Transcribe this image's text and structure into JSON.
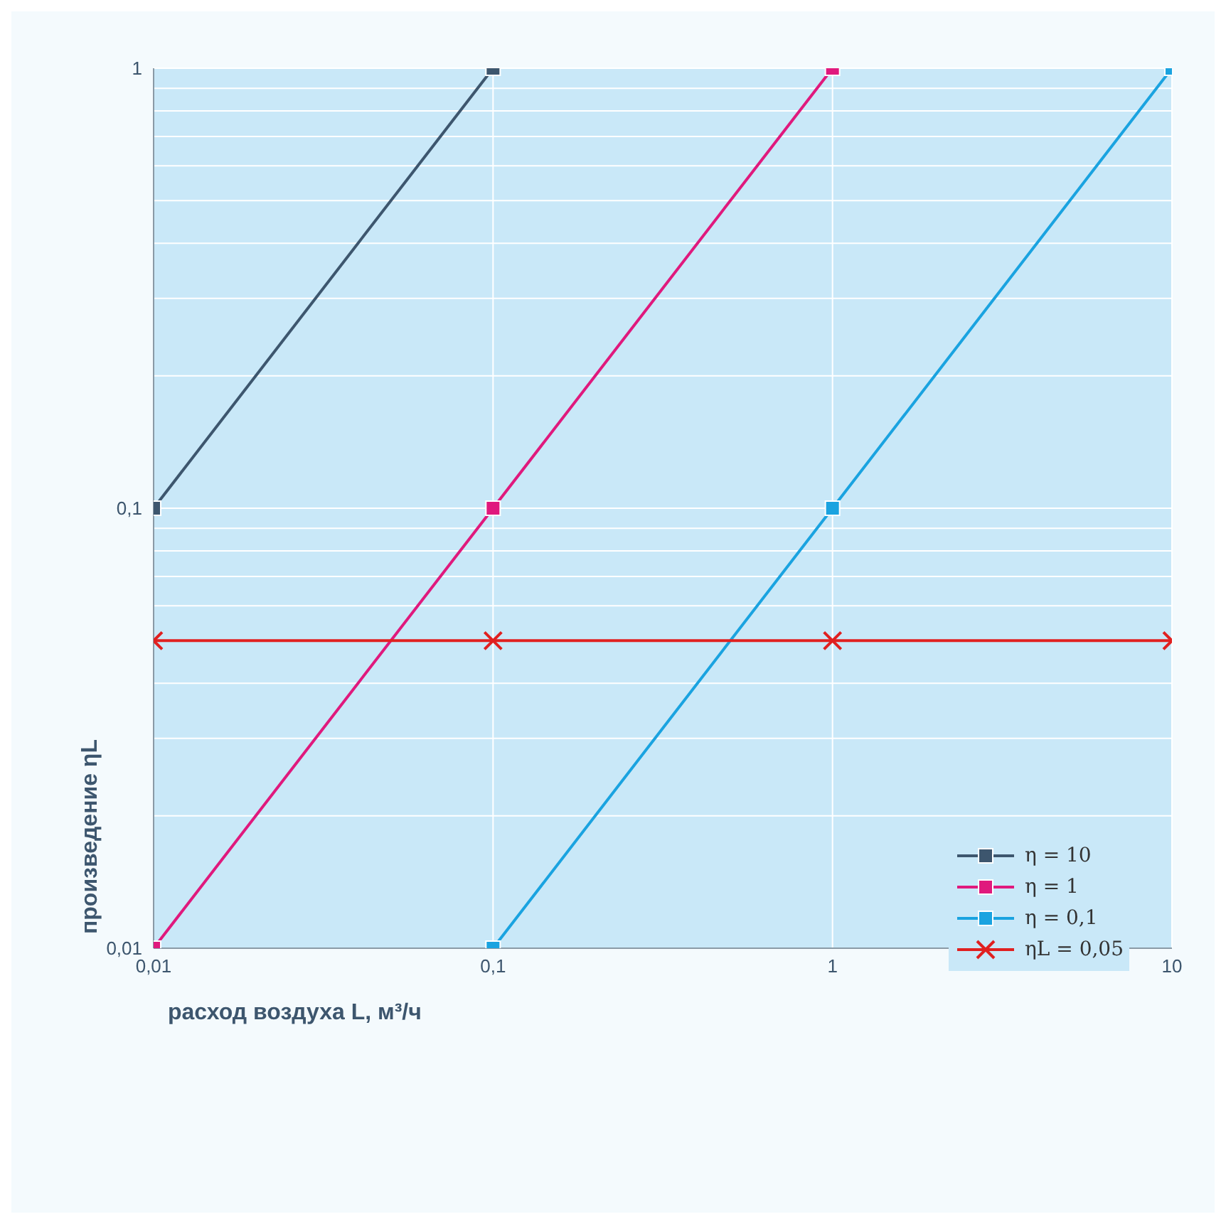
{
  "chart_data": {
    "type": "line",
    "xlabel": "расход воздуха L, м³/ч",
    "ylabel": "произведение ηL",
    "log": "xy",
    "xlim": [
      0.01,
      10
    ],
    "ylim": [
      0.01,
      1
    ],
    "xticks": [
      {
        "value": 0.01,
        "label": "0,01"
      },
      {
        "value": 0.1,
        "label": "0,1"
      },
      1,
      10
    ],
    "yticks": [
      {
        "value": 0.01,
        "label": "0,01"
      },
      {
        "value": 0.02,
        "label": null
      },
      {
        "value": 0.03,
        "label": null
      },
      {
        "value": 0.04,
        "label": null
      },
      {
        "value": 0.06,
        "label": null
      },
      {
        "value": 0.07,
        "label": null
      },
      {
        "value": 0.08,
        "label": null
      },
      {
        "value": 0.09,
        "label": null
      },
      {
        "value": 0.1,
        "label": "0,1"
      },
      {
        "value": 0.2,
        "label": null
      },
      {
        "value": 0.3,
        "label": null
      },
      {
        "value": 0.4,
        "label": null
      },
      {
        "value": 0.5,
        "label": null
      },
      {
        "value": 0.6,
        "label": null
      },
      {
        "value": 0.7,
        "label": null
      },
      {
        "value": 0.8,
        "label": null
      },
      {
        "value": 0.9,
        "label": null
      },
      1
    ],
    "grid": true,
    "legend": "bottom right",
    "line_style": "solid",
    "series": [
      {
        "name": "η = 10",
        "color": "#3d566e",
        "marker": "square",
        "x": [
          0.01,
          0.1
        ],
        "values": [
          0.1,
          1
        ]
      },
      {
        "name": "η = 1",
        "color": "#e0197d",
        "marker": "square",
        "x": [
          0.01,
          0.1,
          1
        ],
        "values": [
          0.01,
          0.1,
          1
        ]
      },
      {
        "name": "η = 0,1",
        "color": "#1aa3e0",
        "marker": "square",
        "x": [
          0.1,
          1,
          10
        ],
        "values": [
          0.01,
          0.1,
          1
        ]
      },
      {
        "name": "ηL = 0,05",
        "color": "#e02020",
        "marker": "cross",
        "x": [
          0.01,
          0.1,
          1,
          10
        ],
        "values": [
          0.05,
          0.05,
          0.05,
          0.05
        ]
      }
    ]
  }
}
